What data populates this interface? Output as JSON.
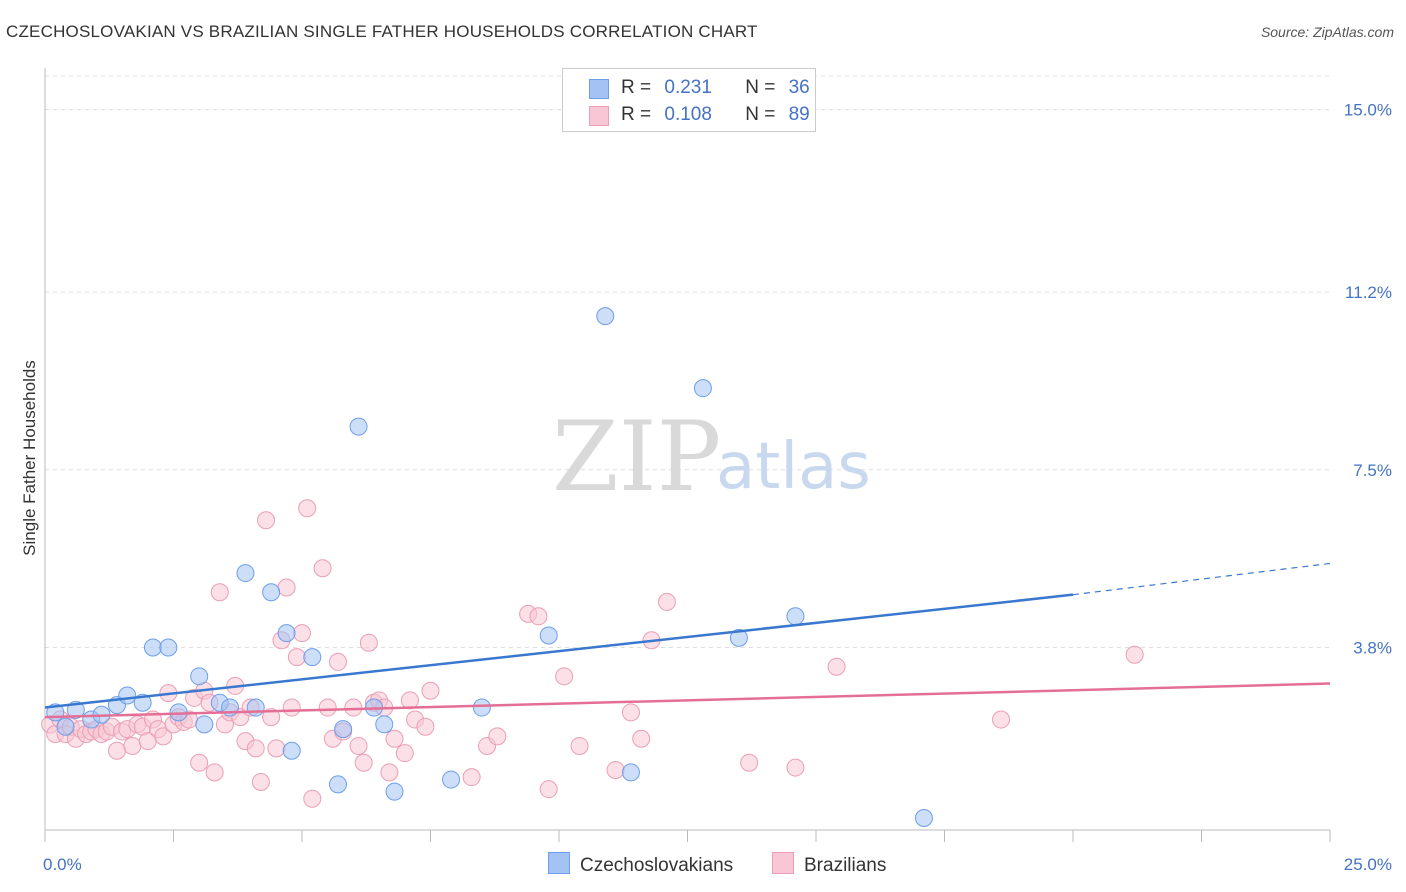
{
  "title": "CZECHOSLOVAKIAN VS BRAZILIAN SINGLE FATHER HOUSEHOLDS CORRELATION CHART",
  "source": "Source: ZipAtlas.com",
  "watermark": {
    "zip": "ZIP",
    "atlas": "atlas"
  },
  "legend": {
    "r_label": "R =",
    "n_label": "N =",
    "rows": [
      {
        "name": "Czechoslovakians",
        "r": "0.231",
        "n": "36",
        "color": "#a4c2f4",
        "stroke": "#6d9eeb"
      },
      {
        "name": "Brazilians",
        "r": "0.108",
        "n": "89",
        "color": "#f8c6d4",
        "stroke": "#ea9fb5"
      }
    ]
  },
  "colors": {
    "blue_fill": "#a4c2f4",
    "blue_stroke": "#6d9eeb",
    "blue_line": "#3a78d0",
    "pink_fill": "#f8c6d4",
    "pink_stroke": "#ea9fb5",
    "pink_line": "#e46f96",
    "tick_text": "#4472c4",
    "grid": "#dddddd"
  },
  "chart_data": {
    "type": "scatter",
    "title": "CZECHOSLOVAKIAN VS BRAZILIAN SINGLE FATHER HOUSEHOLDS CORRELATION CHART",
    "xlabel": "",
    "ylabel": "Single Father Households",
    "xlim": [
      0,
      25
    ],
    "ylim": [
      0,
      15.7
    ],
    "x_tick_labels": [
      "0.0%",
      "25.0%"
    ],
    "y_ticks": [
      3.8,
      7.5,
      11.2,
      15.0
    ],
    "y_tick_labels": [
      "3.8%",
      "7.5%",
      "11.2%",
      "15.0%"
    ],
    "grid": true,
    "legend_position": "top-center",
    "series": [
      {
        "name": "Czechoslovakians",
        "trend": {
          "x0": 0,
          "y0": 2.55,
          "x1": 20,
          "y1": 4.9,
          "dashed_to_x": 25,
          "dashed_to_y": 5.55
        },
        "points": [
          [
            0.2,
            2.45
          ],
          [
            0.4,
            2.15
          ],
          [
            0.6,
            2.5
          ],
          [
            0.9,
            2.3
          ],
          [
            1.1,
            2.4
          ],
          [
            1.4,
            2.6
          ],
          [
            1.6,
            2.8
          ],
          [
            1.9,
            2.65
          ],
          [
            2.1,
            3.8
          ],
          [
            2.4,
            3.8
          ],
          [
            2.6,
            2.45
          ],
          [
            3.0,
            3.2
          ],
          [
            3.1,
            2.2
          ],
          [
            3.4,
            2.65
          ],
          [
            3.6,
            2.55
          ],
          [
            3.9,
            5.35
          ],
          [
            4.1,
            2.55
          ],
          [
            4.4,
            4.95
          ],
          [
            4.7,
            4.1
          ],
          [
            4.8,
            1.65
          ],
          [
            5.2,
            3.6
          ],
          [
            5.7,
            0.95
          ],
          [
            5.8,
            2.1
          ],
          [
            6.1,
            8.4
          ],
          [
            6.4,
            2.55
          ],
          [
            6.6,
            2.2
          ],
          [
            6.8,
            0.8
          ],
          [
            7.9,
            1.05
          ],
          [
            8.5,
            2.55
          ],
          [
            9.8,
            4.05
          ],
          [
            10.9,
            10.7
          ],
          [
            11.4,
            1.2
          ],
          [
            12.8,
            9.2
          ],
          [
            13.5,
            4.0
          ],
          [
            14.6,
            4.45
          ],
          [
            17.1,
            0.25
          ]
        ]
      },
      {
        "name": "Brazilians",
        "trend": {
          "x0": 0,
          "y0": 2.35,
          "x1": 25,
          "y1": 3.05
        },
        "points": [
          [
            0.1,
            2.2
          ],
          [
            0.2,
            2.0
          ],
          [
            0.3,
            2.3
          ],
          [
            0.4,
            2.0
          ],
          [
            0.5,
            2.15
          ],
          [
            0.6,
            1.9
          ],
          [
            0.7,
            2.1
          ],
          [
            0.8,
            2.0
          ],
          [
            0.9,
            2.05
          ],
          [
            1.0,
            2.1
          ],
          [
            1.1,
            2.0
          ],
          [
            1.2,
            2.05
          ],
          [
            1.3,
            2.15
          ],
          [
            1.4,
            1.65
          ],
          [
            1.5,
            2.05
          ],
          [
            1.6,
            2.1
          ],
          [
            1.7,
            1.75
          ],
          [
            1.8,
            2.2
          ],
          [
            1.9,
            2.15
          ],
          [
            2.0,
            1.85
          ],
          [
            2.1,
            2.3
          ],
          [
            2.2,
            2.1
          ],
          [
            2.3,
            1.95
          ],
          [
            2.4,
            2.85
          ],
          [
            2.5,
            2.2
          ],
          [
            2.6,
            2.35
          ],
          [
            2.7,
            2.25
          ],
          [
            2.8,
            2.3
          ],
          [
            2.9,
            2.75
          ],
          [
            3.0,
            1.4
          ],
          [
            3.1,
            2.9
          ],
          [
            3.2,
            2.65
          ],
          [
            3.3,
            1.2
          ],
          [
            3.4,
            4.95
          ],
          [
            3.5,
            2.2
          ],
          [
            3.6,
            2.45
          ],
          [
            3.7,
            3.0
          ],
          [
            3.8,
            2.35
          ],
          [
            3.9,
            1.85
          ],
          [
            4.0,
            2.55
          ],
          [
            4.1,
            1.7
          ],
          [
            4.2,
            1.0
          ],
          [
            4.3,
            6.45
          ],
          [
            4.4,
            2.35
          ],
          [
            4.5,
            1.7
          ],
          [
            4.6,
            3.95
          ],
          [
            4.7,
            5.05
          ],
          [
            4.8,
            2.55
          ],
          [
            4.9,
            3.6
          ],
          [
            5.0,
            4.1
          ],
          [
            5.1,
            6.7
          ],
          [
            5.2,
            0.65
          ],
          [
            5.4,
            5.45
          ],
          [
            5.5,
            2.55
          ],
          [
            5.6,
            1.9
          ],
          [
            5.7,
            3.5
          ],
          [
            5.8,
            2.05
          ],
          [
            6.0,
            2.55
          ],
          [
            6.1,
            1.75
          ],
          [
            6.2,
            1.4
          ],
          [
            6.3,
            3.9
          ],
          [
            6.4,
            2.65
          ],
          [
            6.5,
            2.7
          ],
          [
            6.6,
            2.55
          ],
          [
            6.7,
            1.2
          ],
          [
            6.8,
            1.9
          ],
          [
            7.0,
            1.6
          ],
          [
            7.1,
            2.7
          ],
          [
            7.2,
            2.3
          ],
          [
            7.4,
            2.15
          ],
          [
            7.5,
            2.9
          ],
          [
            8.3,
            1.1
          ],
          [
            8.6,
            1.75
          ],
          [
            8.8,
            1.95
          ],
          [
            9.4,
            4.5
          ],
          [
            9.6,
            4.45
          ],
          [
            9.8,
            0.85
          ],
          [
            10.1,
            3.2
          ],
          [
            10.4,
            1.75
          ],
          [
            11.1,
            1.25
          ],
          [
            11.4,
            2.45
          ],
          [
            11.6,
            1.9
          ],
          [
            11.8,
            3.95
          ],
          [
            12.1,
            4.75
          ],
          [
            13.7,
            1.4
          ],
          [
            14.6,
            1.3
          ],
          [
            15.4,
            3.4
          ],
          [
            18.6,
            2.3
          ],
          [
            21.2,
            3.65
          ]
        ]
      }
    ]
  }
}
